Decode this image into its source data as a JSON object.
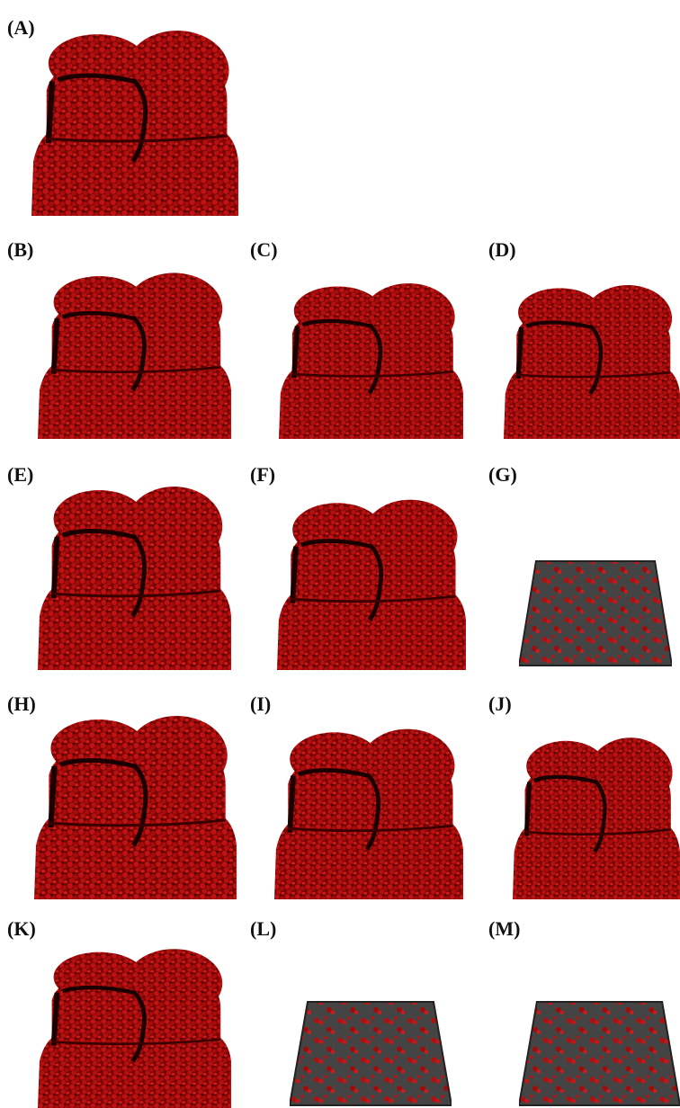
{
  "panels": [
    {
      "label": "(A)"
    },
    {
      "label": "(B)"
    },
    {
      "label": "(C)"
    },
    {
      "label": "(D)"
    },
    {
      "label": "(E)"
    },
    {
      "label": "(F)"
    },
    {
      "label": "(G)"
    },
    {
      "label": "(H)"
    },
    {
      "label": "(I)"
    },
    {
      "label": "(J)"
    },
    {
      "label": "(K)"
    },
    {
      "label": "(L)"
    },
    {
      "label": "(M)"
    }
  ]
}
